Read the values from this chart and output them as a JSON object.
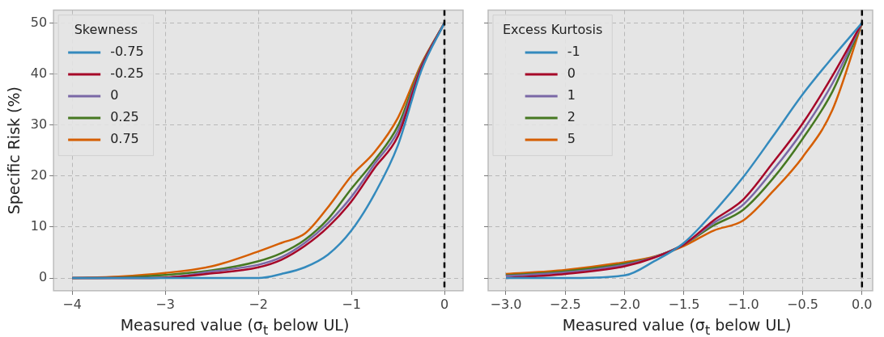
{
  "chart_data": [
    {
      "type": "line",
      "ylabel": "Specific Risk (%)",
      "xlabel": "Measured value (σ$_{t}$ below UL)",
      "legend_title": "Skewness",
      "legend": "top left",
      "grid": true,
      "x": [
        -4,
        -3.5,
        -3,
        -2.5,
        -2,
        -1.75,
        -1.5,
        -1.25,
        -1,
        -0.75,
        -0.5,
        -0.25,
        0
      ],
      "xlim": [
        -4.2,
        0.2
      ],
      "xticks": [
        {
          "value": -4,
          "label": "−4"
        },
        {
          "value": -3,
          "label": "−3"
        },
        {
          "value": -2,
          "label": "−2"
        },
        {
          "value": -1,
          "label": "−1"
        },
        0
      ],
      "ylim": [
        -2.5,
        52.5
      ],
      "yticks": [
        0,
        10,
        20,
        30,
        40,
        50
      ],
      "ref_lines": [
        {
          "axis": "x",
          "value": 0,
          "color": "#000000",
          "line_style": "dashed"
        }
      ],
      "series": [
        {
          "name": "-0.75",
          "color": "#348abd",
          "values": [
            0,
            0,
            0,
            0,
            0,
            0.8,
            2.1,
            4.6,
            9.3,
            16.5,
            26,
            40.6,
            50
          ]
        },
        {
          "name": "-0.25",
          "color": "#a60628",
          "values": [
            0,
            0,
            0.1,
            0.9,
            2.1,
            3.6,
            6.3,
            10,
            15,
            21.6,
            27.8,
            41.2,
            50
          ]
        },
        {
          "name": "0",
          "color": "#7a68a6",
          "values": [
            0,
            0,
            0.1,
            1.3,
            2.6,
            4.1,
            6.9,
            10.8,
            15.9,
            22.4,
            28.8,
            41.4,
            50
          ]
        },
        {
          "name": "0.25",
          "color": "#467821",
          "values": [
            0,
            0.1,
            0.6,
            1.5,
            3.3,
            4.9,
            7.5,
            11.6,
            17.5,
            23.1,
            29.8,
            41.6,
            50
          ]
        },
        {
          "name": "0.75",
          "color": "#d55e00",
          "values": [
            0,
            0.3,
            1,
            2.3,
            5.2,
            6.9,
            8.7,
            13.9,
            20,
            24.7,
            31.4,
            41.9,
            50
          ]
        }
      ]
    },
    {
      "type": "line",
      "xlabel": "Measured value (σ$_{t}$ below UL)",
      "legend_title": "Excess Kurtosis",
      "legend": "top left",
      "grid": true,
      "tick_labels": "x",
      "x": [
        -3,
        -2.5,
        -2,
        -1.75,
        -1.5,
        -1.25,
        -1,
        -0.75,
        -0.5,
        -0.25,
        0
      ],
      "xlim": [
        -3.15,
        0.09
      ],
      "xticks": [
        {
          "value": -3,
          "label": "−3.0"
        },
        {
          "value": -2.5,
          "label": "−2.5"
        },
        {
          "value": -2,
          "label": "−2.0"
        },
        {
          "value": -1.5,
          "label": "−1.5"
        },
        {
          "value": -1,
          "label": "−1.0"
        },
        {
          "value": -0.5,
          "label": "−0.5"
        },
        {
          "value": 0,
          "label": "0.0"
        }
      ],
      "ylim": [
        -2.5,
        52.5
      ],
      "yticks": [
        0,
        10,
        20,
        30,
        40,
        50
      ],
      "ref_lines": [
        {
          "axis": "x",
          "value": 0,
          "color": "#000000",
          "line_style": "dashed"
        }
      ],
      "series": [
        {
          "name": "-1",
          "color": "#348abd",
          "values": [
            0,
            0,
            0.5,
            3.3,
            6.9,
            12.9,
            19.8,
            27.8,
            36,
            43.2,
            50
          ]
        },
        {
          "name": "0",
          "color": "#a60628",
          "values": [
            0,
            0.8,
            2.3,
            4,
            6.6,
            11.3,
            15.4,
            22.6,
            30.3,
            39.6,
            50
          ]
        },
        {
          "name": "1",
          "color": "#7a68a6",
          "values": [
            0.4,
            1.1,
            2.6,
            4.1,
            6.6,
            10.8,
            14.4,
            21.1,
            28.8,
            38.1,
            50
          ]
        },
        {
          "name": "2",
          "color": "#467821",
          "values": [
            0.5,
            1.3,
            2.8,
            4.1,
            6.6,
            10.3,
            13.4,
            19.5,
            27.3,
            36.5,
            50
          ]
        },
        {
          "name": "5",
          "color": "#d55e00",
          "values": [
            0.8,
            1.6,
            3.1,
            4.2,
            6.3,
            9.3,
            11.3,
            17,
            23.7,
            32.9,
            50
          ]
        }
      ]
    }
  ]
}
